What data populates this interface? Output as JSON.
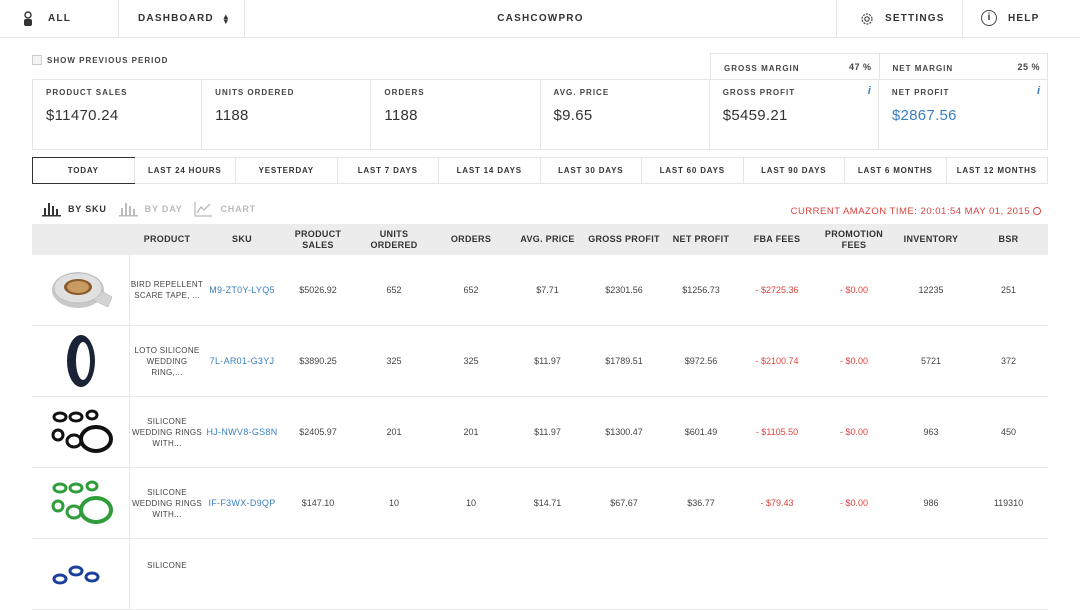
{
  "nav": {
    "all_label": "ALL",
    "dashboard_label": "DASHBOARD",
    "app_title": "CASHCOWPRO",
    "settings_label": "SETTINGS",
    "help_label": "HELP"
  },
  "show_previous_period": "SHOW PREVIOUS PERIOD",
  "margins": {
    "gross_margin_label": "GROSS MARGIN",
    "gross_margin_value": "47 %",
    "net_margin_label": "NET MARGIN",
    "net_margin_value": "25 %"
  },
  "metrics": [
    {
      "label": "PRODUCT SALES",
      "value": "$11470.24"
    },
    {
      "label": "UNITS ORDERED",
      "value": "1188"
    },
    {
      "label": "ORDERS",
      "value": "1188"
    },
    {
      "label": "AVG. PRICE",
      "value": "$9.65"
    },
    {
      "label": "GROSS PROFIT",
      "value": "$5459.21"
    },
    {
      "label": "NET PROFIT",
      "value": "$2867.56"
    }
  ],
  "info_icon": "i",
  "ranges": [
    "TODAY",
    "LAST 24 HOURS",
    "YESTERDAY",
    "LAST 7 DAYS",
    "LAST 14 DAYS",
    "LAST 30 DAYS",
    "LAST 60 DAYS",
    "LAST 90 DAYS",
    "LAST 6 MONTHS",
    "LAST 12 MONTHS"
  ],
  "views": {
    "by_sku": "BY SKU",
    "by_day": "BY DAY",
    "chart": "CHART"
  },
  "amazon_time": "CURRENT AMAZON TIME: 20:01:54 MAY 01, 2015",
  "table": {
    "headers": [
      "PRODUCT",
      "SKU",
      "PRODUCT SALES",
      "UNITS ORDERED",
      "ORDERS",
      "AVG. PRICE",
      "GROSS PROFIT",
      "NET PROFIT",
      "FBA FEES",
      "PROMOTION FEES",
      "INVENTORY",
      "BSR"
    ],
    "rows": [
      {
        "product": "BIRD REPELLENT SCARE TAPE, ...",
        "sku": "M9-ZT0Y-LYQ5",
        "sales": "$5026.92",
        "units": "652",
        "orders": "652",
        "avg": "$7.71",
        "gross": "$2301.56",
        "net": "$1256.73",
        "fba": "- $2725.36",
        "promo": "- $0.00",
        "inventory": "12235",
        "bsr": "251"
      },
      {
        "product": "LOTO SILICONE WEDDING RING,...",
        "sku": "7L-AR01-G3YJ",
        "sales": "$3890.25",
        "units": "325",
        "orders": "325",
        "avg": "$11.97",
        "gross": "$1789.51",
        "net": "$972.56",
        "fba": "- $2100.74",
        "promo": "- $0.00",
        "inventory": "5721",
        "bsr": "372"
      },
      {
        "product": "SILICONE WEDDING RINGS WITH...",
        "sku": "HJ-NWV8-GS8N",
        "sales": "$2405.97",
        "units": "201",
        "orders": "201",
        "avg": "$11.97",
        "gross": "$1300.47",
        "net": "$601.49",
        "fba": "- $1105.50",
        "promo": "- $0.00",
        "inventory": "963",
        "bsr": "450"
      },
      {
        "product": "SILICONE WEDDING RINGS WITH...",
        "sku": "IF-F3WX-D9QP",
        "sales": "$147.10",
        "units": "10",
        "orders": "10",
        "avg": "$14.71",
        "gross": "$67.67",
        "net": "$36.77",
        "fba": "- $79.43",
        "promo": "- $0.00",
        "inventory": "986",
        "bsr": "119310"
      },
      {
        "product": "SILICONE",
        "sku": "",
        "sales": "",
        "units": "",
        "orders": "",
        "avg": "",
        "gross": "",
        "net": "",
        "fba": "",
        "promo": "",
        "inventory": "",
        "bsr": ""
      }
    ]
  },
  "colors": {
    "accent_blue": "#3a7fc1",
    "negative_red": "#d9443f",
    "header_gray": "#ececec"
  }
}
